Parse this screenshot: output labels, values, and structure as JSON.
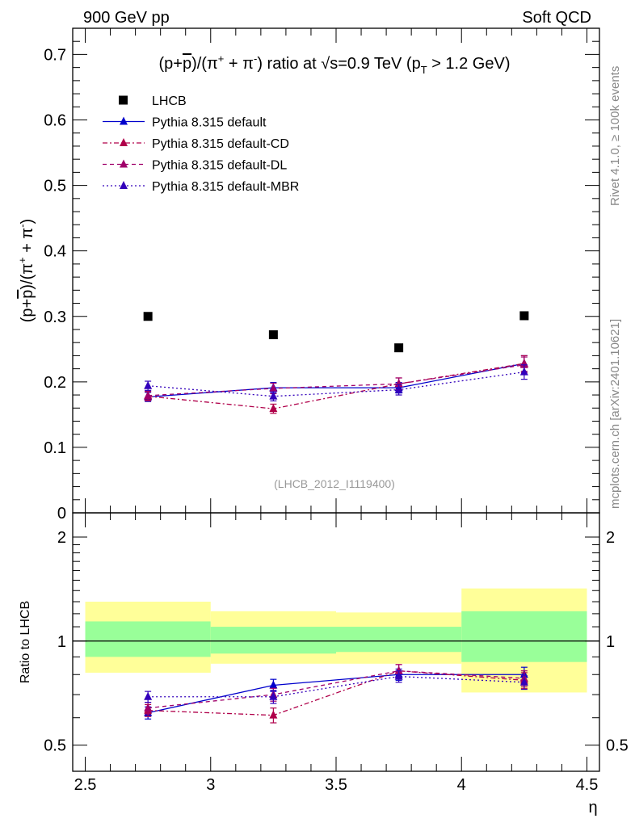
{
  "header": {
    "left": "900 GeV pp",
    "right": "Soft QCD"
  },
  "side_labels": {
    "rivet": "Rivet 4.1.0, ≥ 100k events",
    "mcplots": "mcplots.cern.ch [arXiv:2401.10621]"
  },
  "plot_title": "(p+p̄)/(π⁺ + π⁻) ratio at √s=0.9 TeV (p_T > 1.2 GeV)",
  "watermark": "(LHCB_2012_I1119400)",
  "colors": {
    "data": "#000000",
    "default": "#0000cc",
    "cd": "#b0004a",
    "dl": "#a0006a",
    "mbr": "#3300bb",
    "band_inner": "#99ff99",
    "band_outer": "#ffff99"
  },
  "chart_data": [
    {
      "type": "scatter",
      "panel": "main",
      "ylabel": "(p+p̄)/(π⁺ + π⁻)",
      "ylim": [
        0,
        0.74
      ],
      "yticks": [
        0,
        0.1,
        0.2,
        0.3,
        0.4,
        0.5,
        0.6,
        0.7
      ],
      "ytick_labels": [
        "0",
        "0.1",
        "0.2",
        "0.3",
        "0.4",
        "0.5",
        "0.6",
        "0.7"
      ],
      "xlim": [
        2.45,
        4.55
      ],
      "x_edges": [
        2.5,
        3.0,
        3.5,
        4.0,
        4.5
      ],
      "x": [
        2.75,
        3.25,
        3.75,
        4.25
      ],
      "series": [
        {
          "name": "LHCB",
          "style": "data",
          "values": [
            0.3,
            0.272,
            0.252,
            0.301
          ]
        },
        {
          "name": "Pythia 8.315 default",
          "style": "solid",
          "values": [
            0.177,
            0.191,
            0.191,
            0.228
          ],
          "errors": [
            0.007,
            0.008,
            0.008,
            0.012
          ]
        },
        {
          "name": "Pythia 8.315 default-CD",
          "style": "dashdot",
          "values": [
            0.178,
            0.159,
            0.197,
            0.228
          ],
          "errors": [
            0.007,
            0.007,
            0.009,
            0.012
          ]
        },
        {
          "name": "Pythia 8.315 default-DL",
          "style": "dashed",
          "values": [
            0.179,
            0.19,
            0.197,
            0.226
          ],
          "errors": [
            0.007,
            0.008,
            0.009,
            0.012
          ]
        },
        {
          "name": "Pythia 8.315 default-MBR",
          "style": "dotted",
          "values": [
            0.194,
            0.178,
            0.188,
            0.215
          ],
          "errors": [
            0.007,
            0.007,
            0.008,
            0.011
          ]
        }
      ]
    },
    {
      "type": "scatter",
      "panel": "ratio",
      "xlabel": "η",
      "ylabel": "Ratio to LHCB",
      "yscale": "log",
      "ylim": [
        0.42,
        2.35
      ],
      "yticks": [
        0.5,
        1,
        2
      ],
      "ytick_labels": [
        "0.5",
        "1",
        "2"
      ],
      "xlim": [
        2.45,
        4.55
      ],
      "xticks": [
        2.5,
        3,
        3.5,
        4,
        4.5
      ],
      "xtick_labels": [
        "2.5",
        "3",
        "3.5",
        "4",
        "4.5"
      ],
      "x_edges": [
        2.5,
        3.0,
        3.5,
        4.0,
        4.5
      ],
      "x": [
        2.75,
        3.25,
        3.75,
        4.25
      ],
      "band_inner": [
        [
          0.9,
          1.14
        ],
        [
          0.92,
          1.1
        ],
        [
          0.93,
          1.1
        ],
        [
          0.87,
          1.22
        ]
      ],
      "band_outer": [
        [
          0.81,
          1.3
        ],
        [
          0.86,
          1.22
        ],
        [
          0.86,
          1.21
        ],
        [
          0.71,
          1.42
        ]
      ],
      "series": [
        {
          "name": "Pythia 8.315 default",
          "style": "solid",
          "values": [
            0.62,
            0.745,
            0.8,
            0.8
          ],
          "errors": [
            0.025,
            0.03,
            0.03,
            0.04
          ]
        },
        {
          "name": "Pythia 8.315 default-CD",
          "style": "dashdot",
          "values": [
            0.63,
            0.61,
            0.82,
            0.77
          ],
          "errors": [
            0.025,
            0.03,
            0.035,
            0.04
          ]
        },
        {
          "name": "Pythia 8.315 default-DL",
          "style": "dashed",
          "values": [
            0.64,
            0.7,
            0.82,
            0.78
          ],
          "errors": [
            0.025,
            0.03,
            0.035,
            0.04
          ]
        },
        {
          "name": "Pythia 8.315 default-MBR",
          "style": "dotted",
          "values": [
            0.69,
            0.69,
            0.79,
            0.76
          ],
          "errors": [
            0.025,
            0.03,
            0.03,
            0.035
          ]
        }
      ]
    }
  ]
}
